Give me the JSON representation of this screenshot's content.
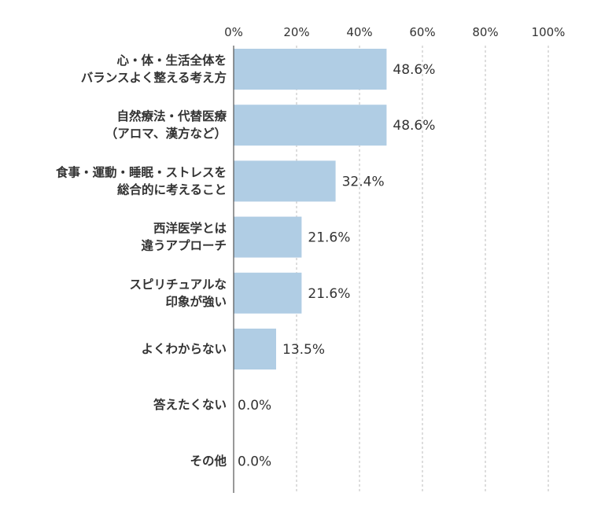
{
  "chart_data": {
    "type": "bar",
    "orientation": "horizontal",
    "title": "",
    "xlabel": "",
    "ylabel": "",
    "xlim": [
      0,
      100
    ],
    "x_ticks": [
      "0%",
      "20%",
      "40%",
      "60%",
      "80%",
      "100%"
    ],
    "x_tick_values": [
      0,
      20,
      40,
      60,
      80,
      100
    ],
    "grid": true,
    "bar_color": "#b0cde4",
    "categories": [
      [
        "心・体・生活全体を",
        "バランスよく整える考え方"
      ],
      [
        "自然療法・代替医療",
        "（アロマ、漢方など）"
      ],
      [
        "食事・運動・睡眠・ストレスを",
        "総合的に考えること"
      ],
      [
        "西洋医学とは",
        "違うアプローチ"
      ],
      [
        "スピリチュアルな",
        "印象が強い"
      ],
      [
        "よくわからない"
      ],
      [
        "答えたくない"
      ],
      [
        "その他"
      ]
    ],
    "values": [
      48.6,
      48.6,
      32.4,
      21.6,
      21.6,
      13.5,
      0.0,
      0.0
    ],
    "value_labels": [
      "48.6%",
      "48.6%",
      "32.4%",
      "21.6%",
      "21.6%",
      "13.5%",
      "0.0%",
      "0.0%"
    ]
  }
}
